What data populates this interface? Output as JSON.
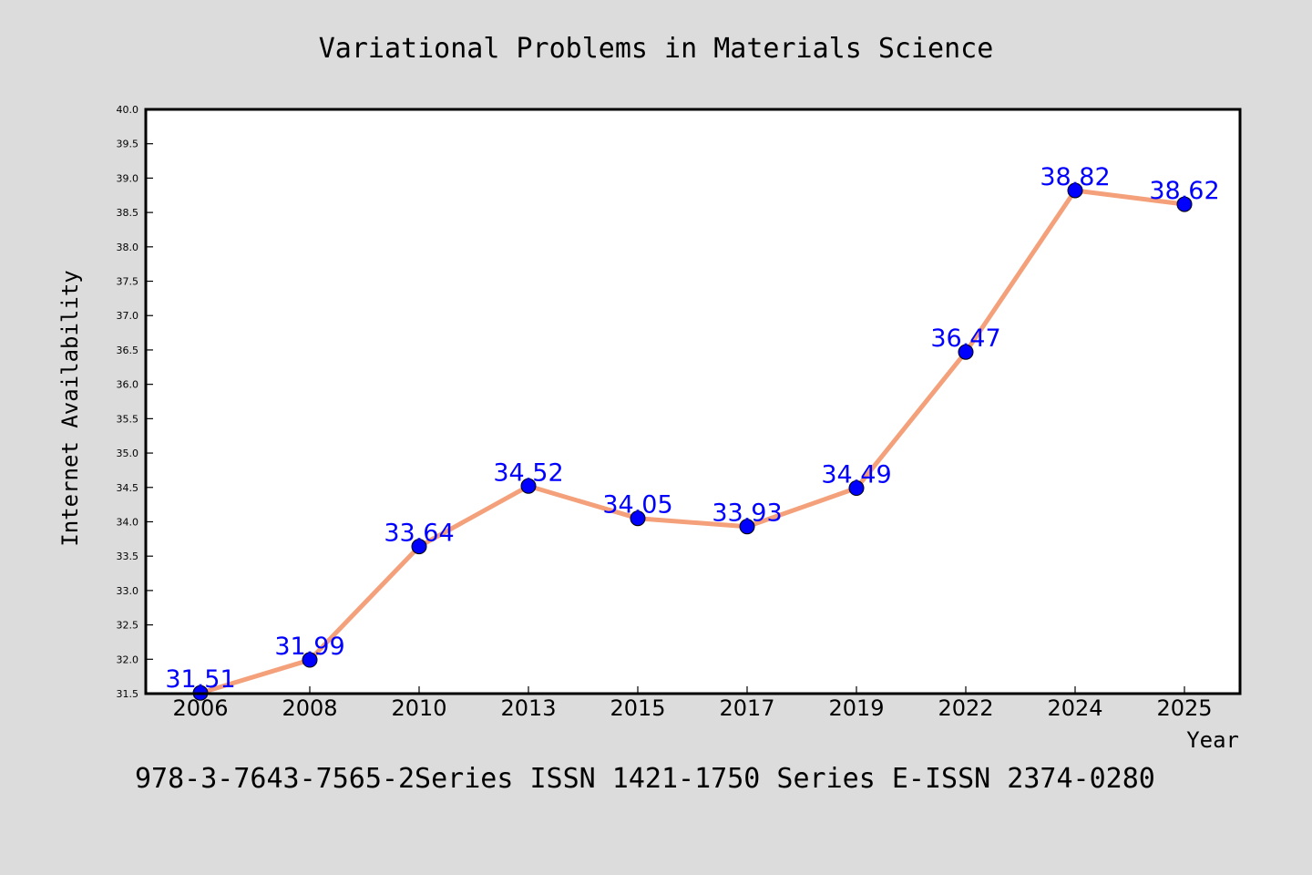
{
  "chart_data": {
    "type": "line",
    "title": "Variational Problems in Materials Science",
    "xlabel": "Year",
    "ylabel": "Internet Availability",
    "footer": "978-3-7643-7565-2Series ISSN 1421-1750 Series E-ISSN 2374-0280",
    "categories": [
      "2006",
      "2008",
      "2010",
      "2013",
      "2015",
      "2017",
      "2019",
      "2022",
      "2024",
      "2025"
    ],
    "series": [
      {
        "values": [
          31.51,
          31.99,
          33.64,
          34.52,
          34.05,
          33.93,
          34.49,
          36.47,
          38.82,
          38.62
        ]
      }
    ],
    "data_labels": [
      "31.51",
      "31.99",
      "33.64",
      "34.52",
      "34.05",
      "33.93",
      "34.49",
      "36.47",
      "38.82",
      "38.62"
    ],
    "ylim": [
      31.5,
      40.0
    ],
    "yticks": [
      "31.5",
      "32.0",
      "32.5",
      "33.0",
      "33.5",
      "34.0",
      "34.5",
      "35.0",
      "35.5",
      "36.0",
      "36.5",
      "37.0",
      "37.5",
      "38.0",
      "38.5",
      "39.0",
      "39.5",
      "40.0"
    ],
    "grid": false,
    "colors": {
      "background": "#dcdcdc",
      "plot_background": "#ffffff",
      "line": "#f4a07a",
      "marker": "#0000ff",
      "label": "#0000ff",
      "text": "#000000"
    }
  }
}
